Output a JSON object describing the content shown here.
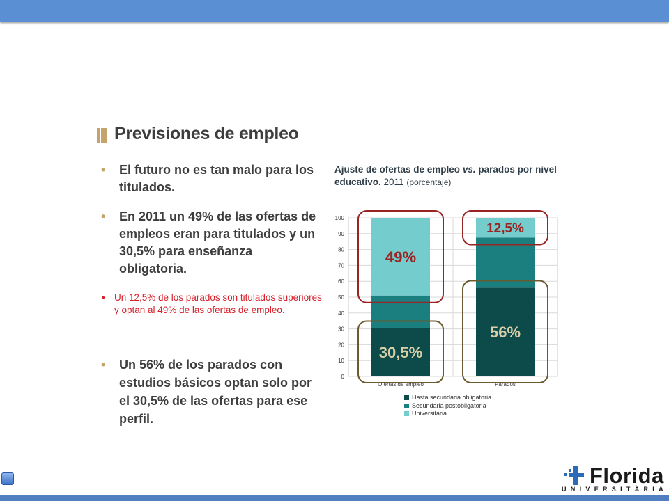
{
  "slide": {
    "title": "Previsiones de empleo",
    "bullets": [
      "El futuro no es tan malo para los titulados.",
      "En 2011 un 49% de las ofertas de empleos eran para titulados y un 30,5% para enseñanza obligatoria.",
      "Un 56% de los parados con estudios básicos optan solo por el 30,5% de las ofertas para ese perfil."
    ],
    "highlight_bullet": "Un 12,5% de los parados son titulados superiores y optan al 49% de las ofertas de empleo.",
    "bullet_glyph": "•"
  },
  "chart_title": {
    "part1": "Ajuste de ofertas de empleo ",
    "part2": "vs.",
    "part3": " parados por nivel educativo.",
    "part4": " 2011 ",
    "part5": "(porcentaje)"
  },
  "chart_data": {
    "type": "bar",
    "stacked": true,
    "categories": [
      "Ofertas de empleo",
      "Parados"
    ],
    "series": [
      {
        "name": "Hasta secundaria obligatoria",
        "values": [
          30.5,
          56
        ],
        "color": "#0d4a4a"
      },
      {
        "name": "Secundaria postobligatoria",
        "values": [
          20.5,
          31.5
        ],
        "color": "#1b7f7f"
      },
      {
        "name": "Universitaria",
        "values": [
          49,
          12.5
        ],
        "color": "#74cccc"
      }
    ],
    "ylim": [
      0,
      100
    ],
    "yticks": [
      0,
      10,
      20,
      30,
      40,
      50,
      60,
      70,
      80,
      90,
      100
    ],
    "grid": true,
    "legend_position": "bottom",
    "annotations": [
      {
        "text": "49%",
        "category": "Ofertas de empleo",
        "series": "Universitaria",
        "frame_color": "#9a2323",
        "text_color": "#9a2323"
      },
      {
        "text": "30,5%",
        "category": "Ofertas de empleo",
        "series": "Hasta secundaria obligatoria",
        "frame_color": "#6b5a2e",
        "text_color": "#d9cfa6"
      },
      {
        "text": "12,5%",
        "category": "Parados",
        "series": "Universitaria",
        "frame_color": "#9a2323",
        "text_color": "#9a2323"
      },
      {
        "text": "56%",
        "category": "Parados",
        "series": "Hasta secundaria obligatoria",
        "frame_color": "#6b5a2e",
        "text_color": "#d9cfa6"
      }
    ]
  },
  "logo": {
    "name": "Florida",
    "subtitle": "UNIVERSITÀRIA"
  },
  "colors": {
    "topbar": "#5b8fd3",
    "accent_gold": "#c5a46b",
    "highlight_red": "#d8202a",
    "text_dark": "#3d3d3d"
  }
}
